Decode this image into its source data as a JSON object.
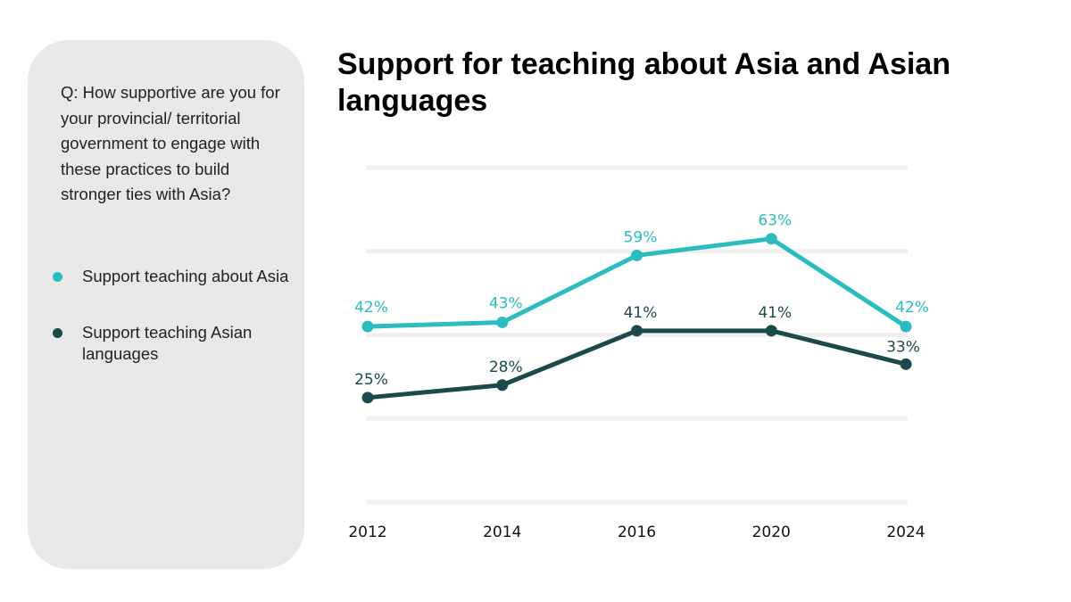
{
  "question": "Q: How supportive are you for your provincial/ territorial government to engage with these practices to build stronger ties with Asia?",
  "colors": {
    "panel_bg": "#e8e8e8",
    "grid": "#f0f0f0",
    "series_asia": "#2bbcbf",
    "series_languages": "#1b4a4c"
  },
  "chart_data": {
    "type": "line",
    "title": "Support for teaching about Asia and Asian languages",
    "categories": [
      "2012",
      "2014",
      "2016",
      "2020",
      "2024"
    ],
    "series": [
      {
        "name": "Support teaching about Asia",
        "values": [
          42,
          43,
          59,
          63,
          42
        ],
        "labels": [
          "42%",
          "43%",
          "59%",
          "63%",
          "42%"
        ]
      },
      {
        "name": "Support teaching Asian languages",
        "values": [
          25,
          28,
          41,
          41,
          33
        ],
        "labels": [
          "25%",
          "28%",
          "41%",
          "41%",
          "33%"
        ]
      }
    ],
    "ylim": [
      0,
      80
    ],
    "gridlines": [
      0,
      20,
      40,
      60,
      80
    ],
    "grid": true,
    "legend": "left panel"
  }
}
